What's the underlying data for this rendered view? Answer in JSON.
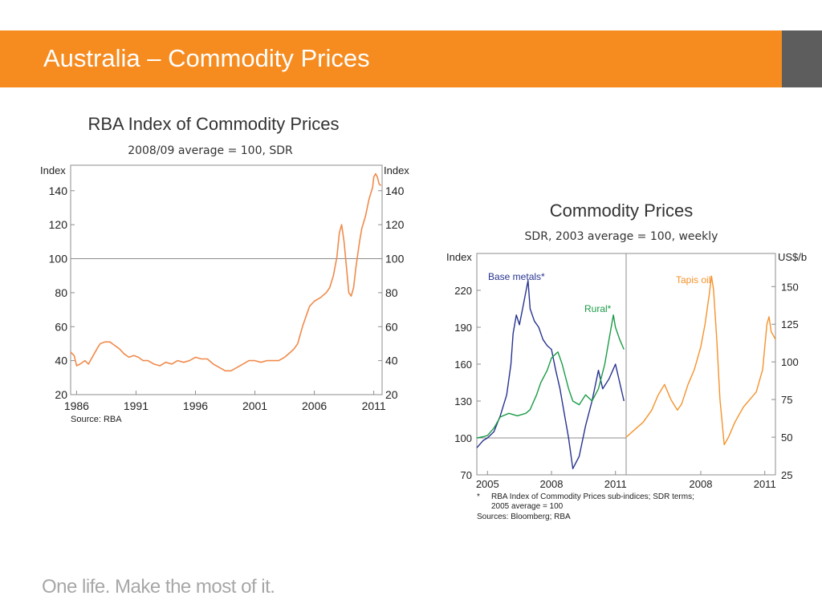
{
  "header": {
    "title": "Australia – Commodity Prices",
    "bar_color": "#f68b1f",
    "accent_color": "#5d5d5d"
  },
  "footer": {
    "tagline": "One life. Make the most of it."
  },
  "chart_data": [
    {
      "id": "rba-index",
      "type": "line",
      "title": "RBA Index of Commodity Prices",
      "subtitle": "2008/09 average = 100, SDR",
      "left_axis_label": "Index",
      "right_axis_label": "Index",
      "x_ticks": [
        "1986",
        "1991",
        "1996",
        "2001",
        "2006",
        "2011"
      ],
      "xlim": [
        1985.5,
        2011.7
      ],
      "y_ticks": [
        20,
        40,
        60,
        80,
        100,
        120,
        140
      ],
      "ylim": [
        20,
        155
      ],
      "reference_line": 100,
      "source": "Source: RBA",
      "series": [
        {
          "color": "#f08a4b",
          "x": [
            1985.5,
            1985.8,
            1986.0,
            1986.3,
            1986.7,
            1987.0,
            1987.4,
            1987.8,
            1988.0,
            1988.4,
            1988.8,
            1989.2,
            1989.6,
            1990.0,
            1990.4,
            1990.8,
            1991.2,
            1991.6,
            1992.0,
            1992.5,
            1993.0,
            1993.5,
            1994.0,
            1994.5,
            1995.0,
            1995.5,
            1996.0,
            1996.5,
            1997.0,
            1997.5,
            1998.0,
            1998.5,
            1999.0,
            1999.5,
            2000.0,
            2000.5,
            2001.0,
            2001.5,
            2002.0,
            2002.5,
            2003.0,
            2003.5,
            2004.0,
            2004.3,
            2004.6,
            2005.0,
            2005.3,
            2005.6,
            2006.0,
            2006.5,
            2007.0,
            2007.3,
            2007.6,
            2007.9,
            2008.1,
            2008.3,
            2008.5,
            2008.7,
            2008.9,
            2009.1,
            2009.3,
            2009.5,
            2009.8,
            2010.0,
            2010.3,
            2010.6,
            2010.9,
            2011.0,
            2011.15,
            2011.3,
            2011.45,
            2011.6
          ],
          "values": [
            45,
            43,
            37,
            38,
            40,
            38,
            43,
            48,
            50,
            51,
            51,
            49,
            47,
            44,
            42,
            43,
            42,
            40,
            40,
            38,
            37,
            39,
            38,
            40,
            39,
            40,
            42,
            41,
            41,
            38,
            36,
            34,
            34,
            36,
            38,
            40,
            40,
            39,
            40,
            40,
            40,
            42,
            45,
            47,
            50,
            60,
            66,
            72,
            75,
            77,
            80,
            83,
            90,
            101,
            115,
            120,
            110,
            95,
            80,
            78,
            83,
            95,
            110,
            118,
            125,
            135,
            142,
            148,
            150,
            148,
            144,
            143
          ]
        }
      ]
    },
    {
      "id": "commodity-prices",
      "type": "line",
      "title": "Commodity Prices",
      "subtitle": "SDR, 2003 average = 100, weekly",
      "left_axis_label": "Index",
      "right_axis_label": "US$/b",
      "left_y_ticks": [
        70,
        100,
        130,
        160,
        190,
        220
      ],
      "left_ylim": [
        70,
        250
      ],
      "right_y_ticks": [
        25,
        50,
        75,
        100,
        125,
        150
      ],
      "right_ylim": [
        25,
        172
      ],
      "reference_line": 100,
      "footnote_marker": "*",
      "footnote_lines": [
        "RBA Index of Commodity Prices sub-indices; SDR terms;",
        "2005 average = 100"
      ],
      "source": "Sources: Bloomberg; RBA",
      "panels": [
        {
          "x_ticks": [
            "2005",
            "2008",
            "2011"
          ],
          "xlim": [
            2004.5,
            2011.5
          ],
          "series": [
            {
              "name": "Base metals*",
              "color": "#27338f",
              "x": [
                2004.5,
                2004.8,
                2005.0,
                2005.3,
                2005.6,
                2005.9,
                2006.1,
                2006.2,
                2006.35,
                2006.5,
                2006.7,
                2006.9,
                2007.0,
                2007.2,
                2007.4,
                2007.6,
                2007.8,
                2008.0,
                2008.2,
                2008.4,
                2008.6,
                2008.8,
                2009.0,
                2009.3,
                2009.6,
                2009.9,
                2010.2,
                2010.4,
                2010.7,
                2011.0,
                2011.2,
                2011.4
              ],
              "values": [
                92,
                98,
                100,
                105,
                118,
                135,
                160,
                185,
                200,
                192,
                210,
                228,
                205,
                195,
                190,
                180,
                175,
                172,
                155,
                140,
                120,
                100,
                75,
                85,
                110,
                130,
                155,
                140,
                148,
                160,
                145,
                130
              ]
            },
            {
              "name": "Rural*",
              "color": "#1a9b46",
              "x": [
                2004.5,
                2004.8,
                2005.0,
                2005.3,
                2005.6,
                2006.0,
                2006.4,
                2006.8,
                2007.0,
                2007.3,
                2007.5,
                2007.8,
                2008.0,
                2008.3,
                2008.5,
                2008.8,
                2009.0,
                2009.3,
                2009.6,
                2009.9,
                2010.2,
                2010.5,
                2010.7,
                2010.9,
                2011.0,
                2011.2,
                2011.4
              ],
              "values": [
                100,
                101,
                102,
                108,
                117,
                120,
                118,
                120,
                123,
                135,
                145,
                155,
                165,
                170,
                160,
                140,
                130,
                127,
                135,
                130,
                140,
                160,
                180,
                200,
                190,
                180,
                172
              ]
            }
          ]
        },
        {
          "x_ticks": [
            "2008",
            "2011"
          ],
          "xlim": [
            2004.5,
            2011.5
          ],
          "series": [
            {
              "name": "Tapis oil",
              "color": "#f5922b",
              "x": [
                2004.5,
                2004.9,
                2005.3,
                2005.7,
                2006.0,
                2006.3,
                2006.6,
                2006.9,
                2007.1,
                2007.4,
                2007.7,
                2008.0,
                2008.2,
                2008.4,
                2008.5,
                2008.6,
                2008.75,
                2008.9,
                2009.1,
                2009.3,
                2009.6,
                2010.0,
                2010.3,
                2010.6,
                2010.9,
                2011.0,
                2011.1,
                2011.2,
                2011.3,
                2011.5
              ],
              "values": [
                50,
                55,
                60,
                68,
                78,
                85,
                75,
                68,
                72,
                85,
                95,
                110,
                125,
                145,
                157,
                148,
                115,
                75,
                45,
                50,
                60,
                70,
                75,
                80,
                95,
                110,
                125,
                130,
                120,
                115
              ]
            }
          ]
        }
      ]
    }
  ]
}
